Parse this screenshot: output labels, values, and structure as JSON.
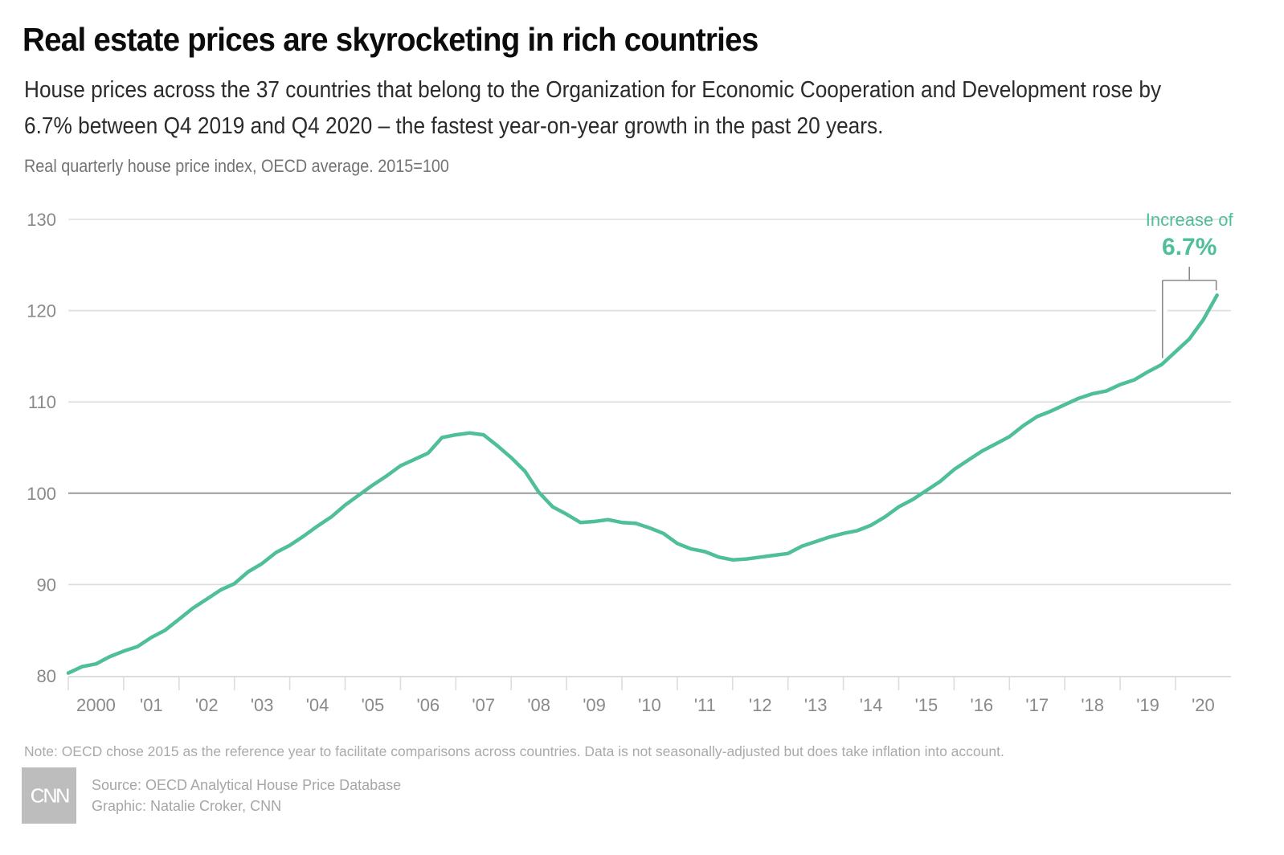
{
  "header": {
    "title": "Real estate prices are skyrocketing in rich countries",
    "subtitle": "House prices across the 37 countries that belong to the Organization for Economic Cooperation and Development rose by 6.7% between Q4 2019 and Q4 2020 – the fastest year-on-year growth in the past 20 years.",
    "unit_label": "Real quarterly house price index, OECD average. 2015=100"
  },
  "footer": {
    "note": "Note: OECD chose 2015 as the reference year to facilitate comparisons across countries. Data is not seasonally-adjusted but does take inflation into account.",
    "source": "Source: OECD Analytical House Price Database",
    "graphic": "Graphic: Natalie Croker, CNN",
    "logo_text": "CNN"
  },
  "colors": {
    "line": "#4fbf98",
    "gridline": "#dddddd",
    "baseline": "#9a9a9a",
    "annotation_bracket": "#8a8a8a",
    "tick_text": "#8a8a8a"
  },
  "chart_data": {
    "type": "line",
    "title": "Real estate prices are skyrocketing in rich countries",
    "xlabel": "",
    "ylabel": "Real quarterly house price index, OECD average. 2015=100",
    "ylim": [
      80,
      130
    ],
    "yticks": [
      80,
      90,
      100,
      110,
      120,
      130
    ],
    "ytick_labels": [
      "80",
      "90",
      "100",
      "110",
      "120",
      "130"
    ],
    "highlighted_gridline": 100,
    "grid": true,
    "xlim": [
      "2000 Q1",
      "2020 Q4"
    ],
    "xtick_years": [
      2000,
      2001,
      2002,
      2003,
      2004,
      2005,
      2006,
      2007,
      2008,
      2009,
      2010,
      2011,
      2012,
      2013,
      2014,
      2015,
      2016,
      2017,
      2018,
      2019,
      2020
    ],
    "xtick_labels": [
      "2000",
      "'01",
      "'02",
      "'03",
      "'04",
      "'05",
      "'06",
      "'07",
      "'08",
      "'09",
      "'10",
      "'11",
      "'12",
      "'13",
      "'14",
      "'15",
      "'16",
      "'17",
      "'18",
      "'19",
      "'20"
    ],
    "series": [
      {
        "name": "OECD average house price index",
        "frequency": "quarterly",
        "start": "2000 Q1",
        "values": [
          80.3,
          81.0,
          81.3,
          82.1,
          82.7,
          83.2,
          84.2,
          85.0,
          86.2,
          87.4,
          88.4,
          89.4,
          90.1,
          91.4,
          92.3,
          93.5,
          94.3,
          95.3,
          96.4,
          97.4,
          98.7,
          99.8,
          100.9,
          101.9,
          103.0,
          103.7,
          104.4,
          106.1,
          106.4,
          106.6,
          106.4,
          105.2,
          103.9,
          102.4,
          100.1,
          98.5,
          97.7,
          96.8,
          96.9,
          97.1,
          96.8,
          96.7,
          96.2,
          95.6,
          94.5,
          93.9,
          93.6,
          93.0,
          92.7,
          92.8,
          93.0,
          93.2,
          93.4,
          94.2,
          94.7,
          95.2,
          95.6,
          95.9,
          96.5,
          97.4,
          98.5,
          99.3,
          100.3,
          101.3,
          102.6,
          103.6,
          104.6,
          105.4,
          106.2,
          107.4,
          108.4,
          109.0,
          109.7,
          110.4,
          110.9,
          111.2,
          111.9,
          112.4,
          113.3,
          114.1,
          115.5,
          116.9,
          119.0,
          121.7
        ]
      }
    ],
    "annotation": {
      "label": "Increase of",
      "value": "6.7%",
      "from": "2019 Q4",
      "to": "2020 Q4"
    },
    "legend": "none"
  }
}
